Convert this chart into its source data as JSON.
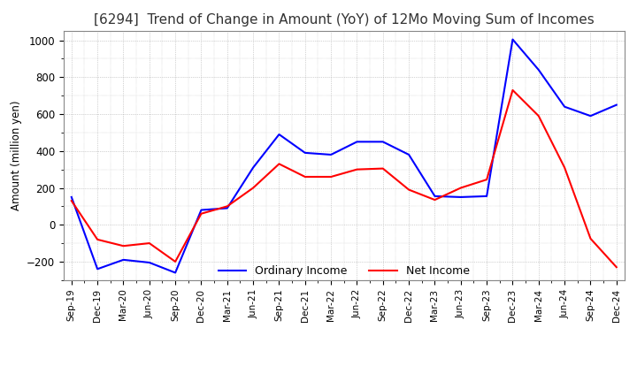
{
  "title": "[6294]  Trend of Change in Amount (YoY) of 12Mo Moving Sum of Incomes",
  "ylabel": "Amount (million yen)",
  "ylim": [
    -300,
    1050
  ],
  "yticks": [
    -200,
    0,
    200,
    400,
    600,
    800,
    1000
  ],
  "x_labels": [
    "Sep-19",
    "Dec-19",
    "Mar-20",
    "Jun-20",
    "Sep-20",
    "Dec-20",
    "Mar-21",
    "Jun-21",
    "Sep-21",
    "Dec-21",
    "Mar-22",
    "Jun-22",
    "Sep-22",
    "Dec-22",
    "Mar-23",
    "Jun-23",
    "Sep-23",
    "Dec-23",
    "Mar-24",
    "Jun-24",
    "Sep-24",
    "Dec-24"
  ],
  "ordinary_income": [
    150,
    -240,
    -190,
    -205,
    -260,
    80,
    90,
    310,
    490,
    390,
    380,
    450,
    450,
    380,
    155,
    150,
    155,
    1005,
    840,
    640,
    590,
    650
  ],
  "net_income": [
    130,
    -80,
    -115,
    -100,
    -200,
    60,
    100,
    200,
    330,
    260,
    260,
    300,
    305,
    190,
    135,
    200,
    245,
    730,
    590,
    310,
    -75,
    -230
  ],
  "ordinary_color": "#0000FF",
  "net_color": "#FF0000",
  "background_color": "#FFFFFF",
  "grid_color": "#AAAAAA",
  "title_fontsize": 11,
  "legend_labels": [
    "Ordinary Income",
    "Net Income"
  ]
}
